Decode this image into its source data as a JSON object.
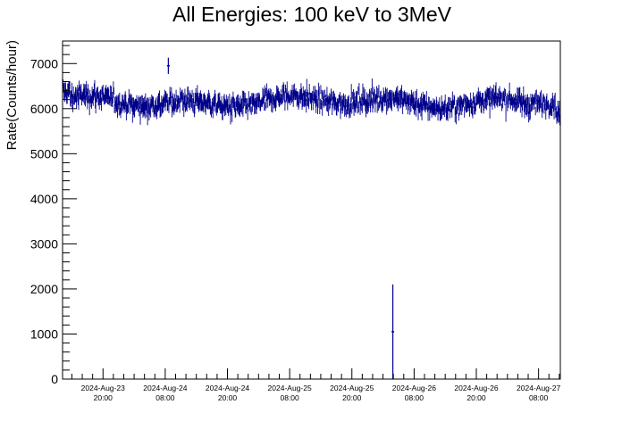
{
  "chart_data": {
    "type": "line",
    "title": "All Energies:  100 keV to 3MeV",
    "xlabel": "",
    "ylabel": "Rate(Counts/hour)",
    "ylim": [
      0,
      7500
    ],
    "xlim_hours": [
      0,
      96
    ],
    "yticks": [
      0,
      1000,
      2000,
      3000,
      4000,
      5000,
      6000,
      7000
    ],
    "xticks": [
      {
        "hour": 7.8,
        "date": "2024-Aug-23",
        "time": "20:00"
      },
      {
        "hour": 19.8,
        "date": "2024-Aug-24",
        "time": "08:00"
      },
      {
        "hour": 31.8,
        "date": "2024-Aug-24",
        "time": "20:00"
      },
      {
        "hour": 43.8,
        "date": "2024-Aug-25",
        "time": "08:00"
      },
      {
        "hour": 55.8,
        "date": "2024-Aug-25",
        "time": "20:00"
      },
      {
        "hour": 67.8,
        "date": "2024-Aug-26",
        "time": "08:00"
      },
      {
        "hour": 79.8,
        "date": "2024-Aug-26",
        "time": "20:00"
      },
      {
        "hour": 91.8,
        "date": "2024-Aug-27",
        "time": "08:00"
      }
    ],
    "series": [
      {
        "color": "#00008b",
        "baseline_value": 6150,
        "noise_band": [
          5700,
          6600
        ],
        "outliers": [
          {
            "hour": 20.4,
            "value": 6950,
            "error": 180
          },
          {
            "hour": 63.7,
            "value": 1050,
            "error": 1050
          }
        ]
      }
    ],
    "grid": false,
    "legend": "none"
  }
}
